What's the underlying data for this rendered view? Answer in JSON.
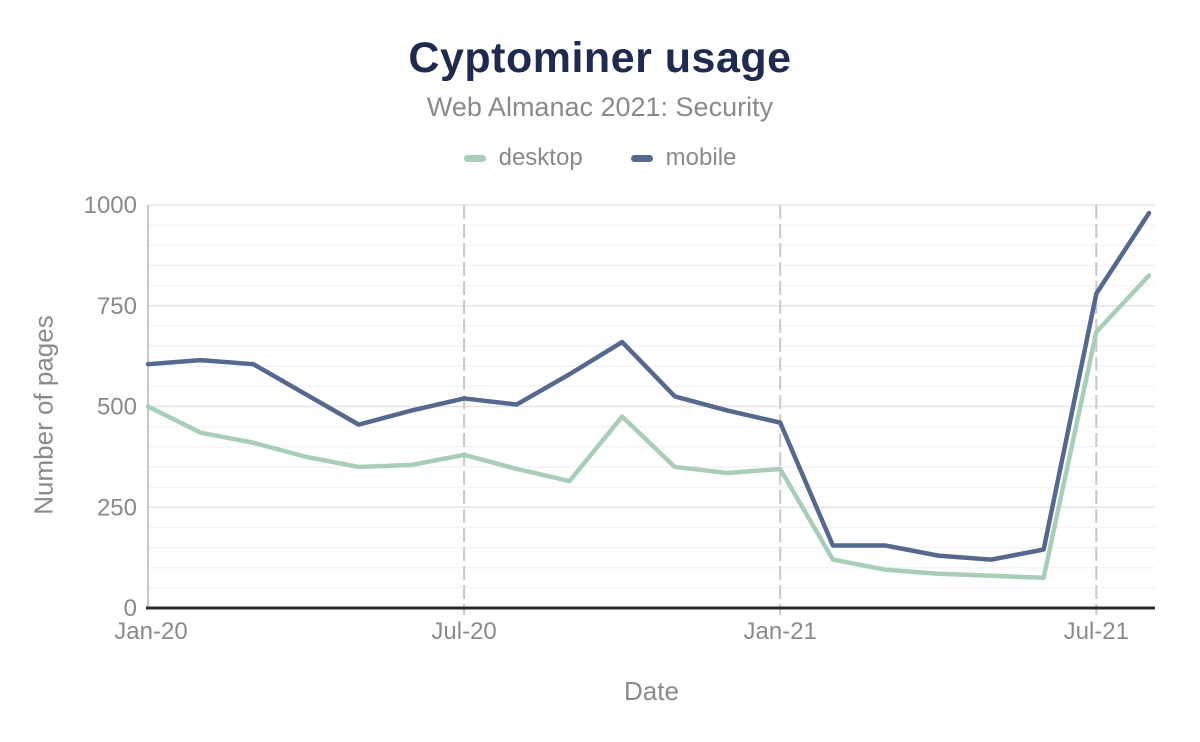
{
  "palette": {
    "title_color": "#1e2a4e",
    "text_gray": "#8a8a8a",
    "axis_color": "#2b2b2b",
    "grid_major": "#e4e4e4",
    "grid_minor": "#f4f4f4",
    "grid_vertical": "#c6c9c7",
    "background": "#ffffff"
  },
  "chart_data": {
    "type": "line",
    "title": "Cyptominer usage",
    "subtitle": "Web Almanac 2021: Security",
    "xlabel": "Date",
    "ylabel": "Number of pages",
    "ylim": [
      0,
      1000
    ],
    "y_ticks": [
      0,
      250,
      500,
      750,
      1000
    ],
    "y_minor_step": 50,
    "grid": "horizontal major and minor lines; dashed vertical lines at labeled x ticks",
    "legend_position": "top-center",
    "categories": [
      "Jan-20",
      "Feb-20",
      "Mar-20",
      "Apr-20",
      "May-20",
      "Jun-20",
      "Jul-20",
      "Aug-20",
      "Sep-20",
      "Oct-20",
      "Nov-20",
      "Dec-20",
      "Jan-21",
      "Feb-21",
      "Mar-21",
      "Apr-21",
      "May-21",
      "Jun-21",
      "Jul-21",
      "Aug-21"
    ],
    "x_ticks": [
      {
        "index": 0,
        "label": "Jan-20"
      },
      {
        "index": 6,
        "label": "Jul-20"
      },
      {
        "index": 12,
        "label": "Jan-21"
      },
      {
        "index": 18,
        "label": "Jul-21"
      }
    ],
    "series": [
      {
        "name": "desktop",
        "color": "#a8cdb8",
        "values": [
          500,
          435,
          410,
          375,
          350,
          355,
          380,
          345,
          315,
          475,
          350,
          335,
          345,
          120,
          95,
          85,
          80,
          75,
          685,
          825
        ]
      },
      {
        "name": "mobile",
        "color": "#55688d",
        "values": [
          605,
          615,
          605,
          530,
          455,
          490,
          520,
          505,
          580,
          660,
          525,
          490,
          460,
          155,
          155,
          130,
          120,
          145,
          780,
          980
        ]
      }
    ]
  }
}
